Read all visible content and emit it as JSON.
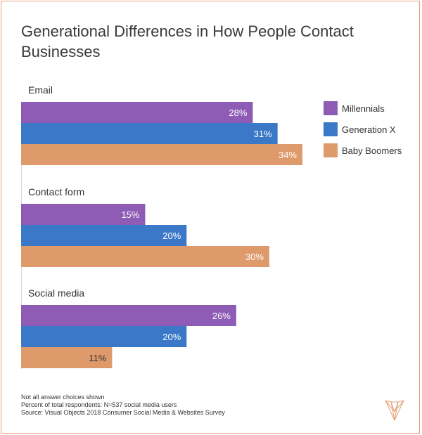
{
  "chart_data": {
    "type": "bar",
    "orientation": "horizontal",
    "title": "Generational Differences in How People Contact Businesses",
    "categories": [
      "Email",
      "Contact form",
      "Social media"
    ],
    "series": [
      {
        "name": "Millennials",
        "values": [
          28,
          15,
          26
        ],
        "labels": [
          "28%",
          "15%",
          "26%"
        ],
        "color": "#8e5bb5"
      },
      {
        "name": "Generation X",
        "values": [
          31,
          20,
          20
        ],
        "labels": [
          "31%",
          "20%",
          "20%"
        ],
        "color": "#3c78c8"
      },
      {
        "name": "Baby Boomers",
        "values": [
          34,
          30,
          11
        ],
        "labels": [
          "34%",
          "30%",
          "11%"
        ],
        "color": "#df9a6b"
      }
    ],
    "xlim": [
      0,
      34
    ],
    "grid": false,
    "legend": "top-right"
  },
  "footer": {
    "note1": "Not all answer choices shown",
    "note2": "Percent of total respondents: N=537 social media users",
    "source": "Source: Visual Objects 2018 Consumer Social Media & Websites Survey"
  },
  "logo": {
    "icon": "visual-objects-logo-icon",
    "color": "#e3a078"
  }
}
